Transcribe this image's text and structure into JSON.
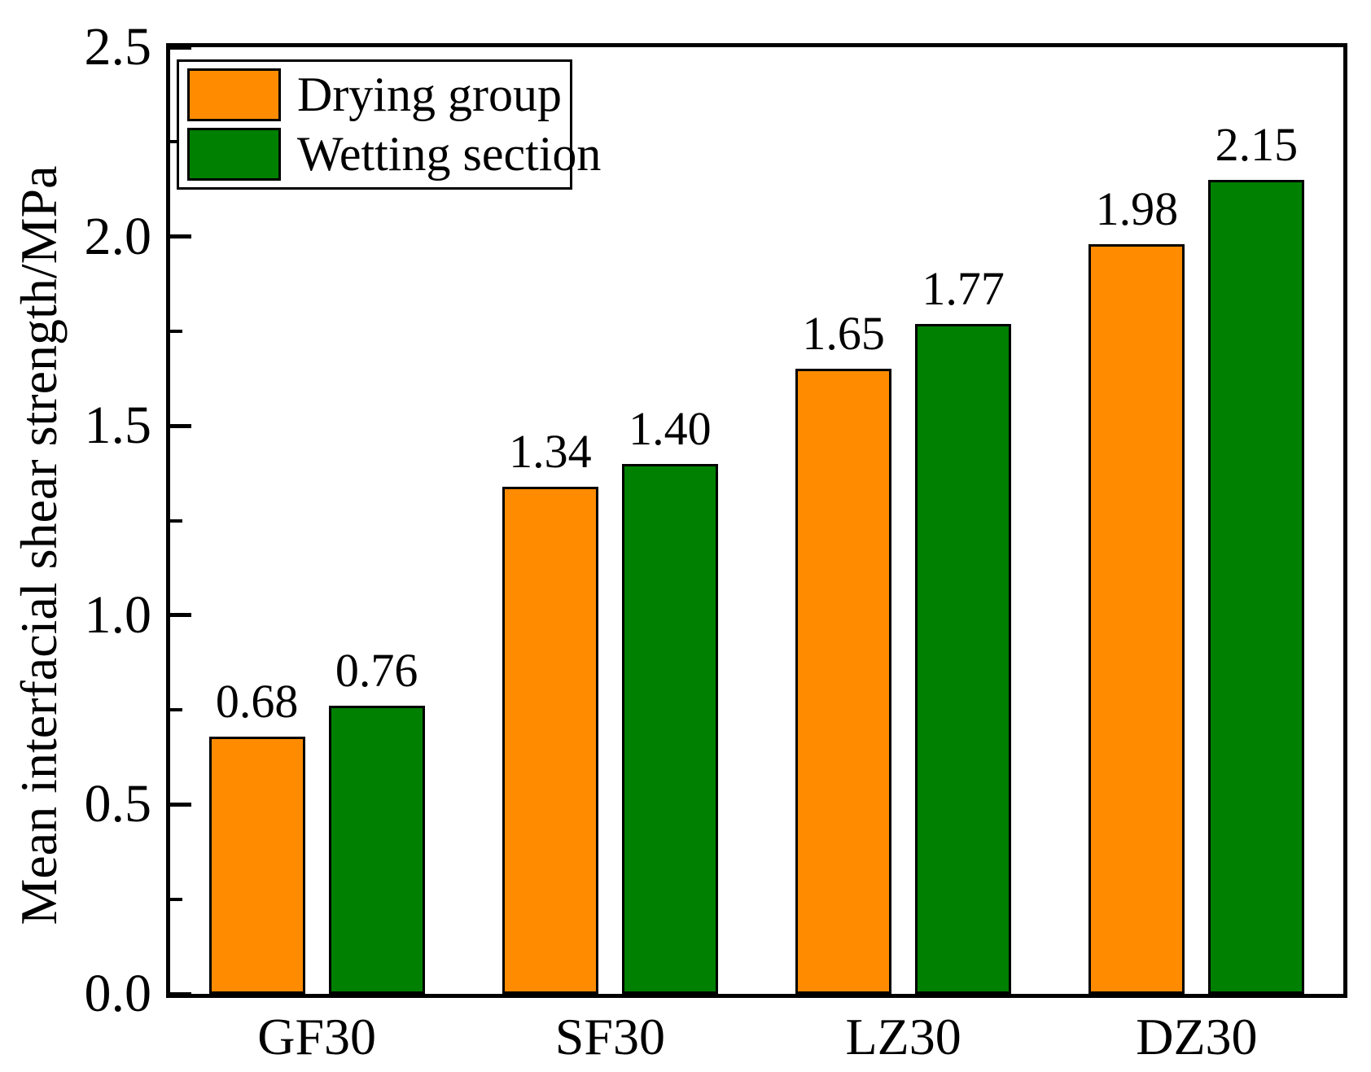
{
  "figure": {
    "background_color": "#FFFFFF",
    "text_color": "#000000",
    "axis_color": "#000000"
  },
  "chart_data": {
    "type": "bar",
    "title": "",
    "xlabel": "",
    "ylabel": "Mean interfacial shear strength/MPa",
    "categories": [
      "GF30",
      "SF30",
      "LZ30",
      "DZ30"
    ],
    "series": [
      {
        "name": "Drying group",
        "color": "#FF8C00",
        "values": [
          0.68,
          1.34,
          1.65,
          1.98
        ],
        "value_labels": [
          "0.68",
          "1.34",
          "1.65",
          "1.98"
        ]
      },
      {
        "name": "Wetting section",
        "color": "#008000",
        "values": [
          0.76,
          1.4,
          1.77,
          2.15
        ],
        "value_labels": [
          "0.76",
          "1.40",
          "1.77",
          "2.15"
        ]
      }
    ],
    "ylim": [
      0,
      2.5
    ],
    "y_major_ticks": [
      0.0,
      0.5,
      1.0,
      1.5,
      2.0,
      2.5
    ],
    "y_tick_labels": [
      "0.0",
      "0.5",
      "1.0",
      "1.5",
      "2.0",
      "2.5"
    ],
    "y_minor_ticks": [
      0.25,
      0.75,
      1.25,
      1.75,
      2.25
    ],
    "grid": false,
    "legend_position": "top-left",
    "bar_edge_color": "#000000"
  }
}
